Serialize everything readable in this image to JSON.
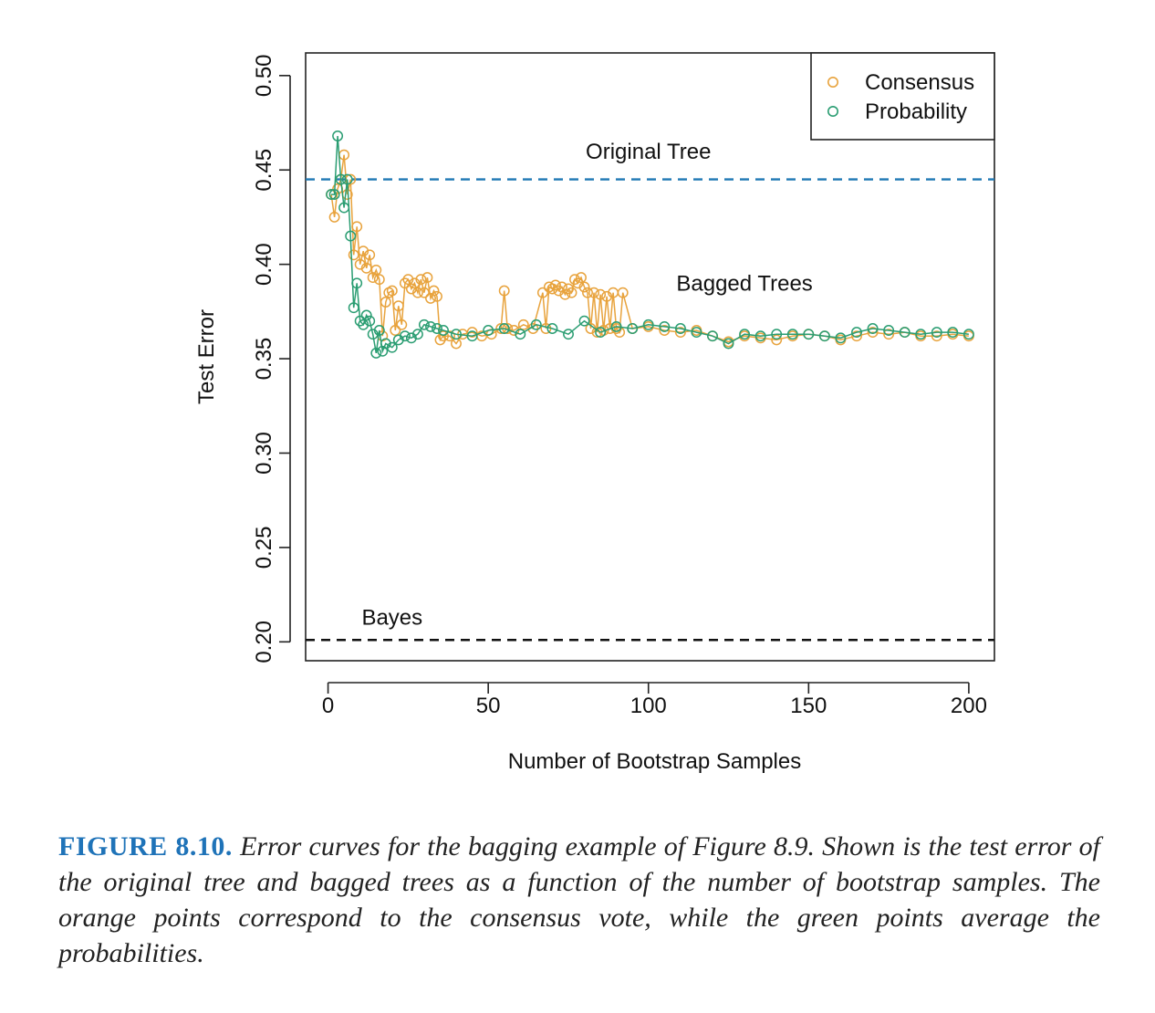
{
  "chart_data": {
    "type": "line",
    "xlabel": "Number of Bootstrap Samples",
    "ylabel": "Test Error",
    "xlim": [
      -7,
      208
    ],
    "ylim": [
      0.19,
      0.512
    ],
    "xticks": [
      0,
      50,
      100,
      150,
      200
    ],
    "xtick_labels": [
      "0",
      "50",
      "100",
      "150",
      "200"
    ],
    "yticks": [
      0.2,
      0.25,
      0.3,
      0.35,
      0.4,
      0.45,
      0.5
    ],
    "ytick_labels": [
      "0.20",
      "0.25",
      "0.30",
      "0.35",
      "0.40",
      "0.45",
      "0.50"
    ],
    "grid": false,
    "legend_position": "top-right",
    "reference_lines": [
      {
        "label": "Original Tree",
        "y": 0.445,
        "color": "#1f78b4",
        "style": "dashed"
      },
      {
        "label": "Bayes",
        "y": 0.201,
        "color": "#111111",
        "style": "dashed"
      }
    ],
    "annotations": [
      {
        "text": "Original Tree",
        "x": 100,
        "y": 0.456
      },
      {
        "text": "Bagged Trees",
        "x": 130,
        "y": 0.386
      },
      {
        "text": "Bayes",
        "x": 20,
        "y": 0.209
      }
    ],
    "series": [
      {
        "name": "Consensus",
        "color": "#e8a33d",
        "x": [
          1,
          2,
          3,
          4,
          5,
          6,
          7,
          8,
          9,
          10,
          11,
          12,
          13,
          14,
          15,
          16,
          17,
          18,
          19,
          20,
          21,
          22,
          23,
          24,
          25,
          26,
          27,
          28,
          29,
          30,
          31,
          32,
          33,
          34,
          35,
          36,
          38,
          40,
          42,
          45,
          48,
          51,
          54,
          55,
          56,
          58,
          61,
          64,
          67,
          68,
          69,
          70,
          71,
          72,
          73,
          74,
          75,
          76,
          77,
          78,
          79,
          80,
          81,
          82,
          83,
          84,
          85,
          86,
          87,
          88,
          89,
          90,
          91,
          92,
          95,
          100,
          105,
          110,
          115,
          120,
          125,
          130,
          135,
          140,
          145,
          150,
          155,
          160,
          165,
          170,
          175,
          180,
          185,
          190,
          195,
          200
        ],
        "y": [
          0.437,
          0.425,
          0.44,
          0.445,
          0.458,
          0.437,
          0.445,
          0.405,
          0.42,
          0.4,
          0.407,
          0.398,
          0.405,
          0.393,
          0.397,
          0.392,
          0.362,
          0.38,
          0.385,
          0.386,
          0.365,
          0.378,
          0.368,
          0.39,
          0.392,
          0.387,
          0.39,
          0.385,
          0.392,
          0.385,
          0.393,
          0.382,
          0.386,
          0.383,
          0.36,
          0.362,
          0.362,
          0.358,
          0.363,
          0.364,
          0.362,
          0.363,
          0.366,
          0.386,
          0.366,
          0.365,
          0.368,
          0.366,
          0.385,
          0.366,
          0.388,
          0.387,
          0.389,
          0.386,
          0.388,
          0.384,
          0.387,
          0.385,
          0.392,
          0.39,
          0.393,
          0.388,
          0.385,
          0.366,
          0.385,
          0.364,
          0.384,
          0.365,
          0.383,
          0.366,
          0.385,
          0.366,
          0.364,
          0.385,
          0.366,
          0.367,
          0.365,
          0.364,
          0.365,
          0.362,
          0.359,
          0.362,
          0.361,
          0.36,
          0.362,
          0.363,
          0.362,
          0.36,
          0.362,
          0.364,
          0.363,
          0.364,
          0.362,
          0.362,
          0.363,
          0.362
        ]
      },
      {
        "name": "Probability",
        "color": "#2a9d72",
        "x": [
          1,
          2,
          3,
          4,
          5,
          6,
          7,
          8,
          9,
          10,
          11,
          12,
          13,
          14,
          15,
          16,
          17,
          18,
          20,
          22,
          24,
          26,
          28,
          30,
          32,
          34,
          36,
          40,
          45,
          50,
          55,
          60,
          65,
          70,
          75,
          80,
          85,
          90,
          95,
          100,
          105,
          110,
          115,
          120,
          125,
          130,
          135,
          140,
          145,
          150,
          155,
          160,
          165,
          170,
          175,
          180,
          185,
          190,
          195,
          200
        ],
        "y": [
          0.437,
          0.437,
          0.468,
          0.445,
          0.43,
          0.445,
          0.415,
          0.377,
          0.39,
          0.37,
          0.368,
          0.373,
          0.37,
          0.363,
          0.353,
          0.365,
          0.354,
          0.358,
          0.356,
          0.36,
          0.362,
          0.361,
          0.363,
          0.368,
          0.367,
          0.366,
          0.365,
          0.363,
          0.362,
          0.365,
          0.366,
          0.363,
          0.368,
          0.366,
          0.363,
          0.37,
          0.364,
          0.367,
          0.366,
          0.368,
          0.367,
          0.366,
          0.364,
          0.362,
          0.358,
          0.363,
          0.362,
          0.363,
          0.363,
          0.363,
          0.362,
          0.361,
          0.364,
          0.366,
          0.365,
          0.364,
          0.363,
          0.364,
          0.364,
          0.363
        ]
      }
    ]
  },
  "caption": {
    "label": "FIGURE 8.10.",
    "text": "Error curves for the bagging example of Figure 8.9. Shown is the test error of the original tree and bagged trees as a function of the number of bootstrap samples. The orange points correspond to the consensus vote, while the green points average the probabilities."
  }
}
